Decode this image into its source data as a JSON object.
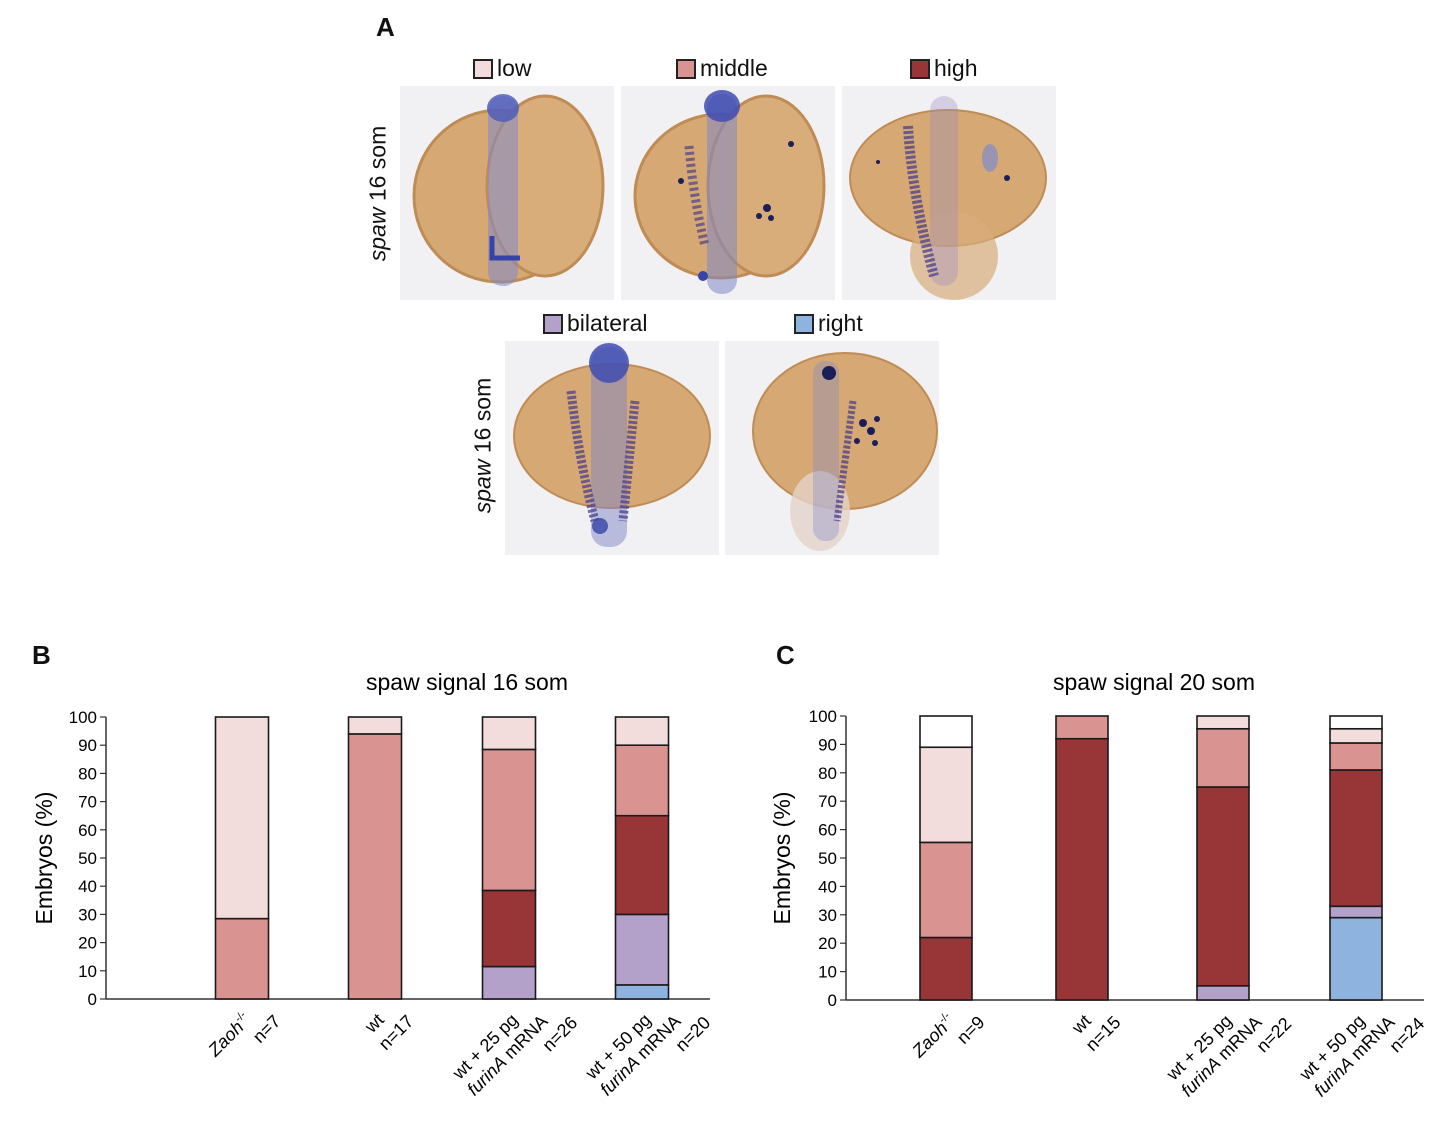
{
  "panelA": {
    "letter": "A",
    "legend": [
      {
        "label": "low",
        "color": "#f3dcdc"
      },
      {
        "label": "middle",
        "color": "#d99492"
      },
      {
        "label": "high",
        "color": "#973537"
      },
      {
        "label": "bilateral",
        "color": "#b3a1c9"
      },
      {
        "label": "right",
        "color": "#8eb3df"
      }
    ],
    "row_label_gene": "spaw",
    "row_label_stage": " 16 som",
    "row2_label_gene": "spaw",
    "row2_label_stage": " 16 som"
  },
  "panelB": {
    "letter": "B"
  },
  "panelC": {
    "letter": "C"
  },
  "chart_data": [
    {
      "type": "bar",
      "stacked": true,
      "title": "spaw signal 16 som",
      "ylabel": "Embryos (%)",
      "ylim": [
        0,
        100
      ],
      "yticks": [
        0,
        10,
        20,
        30,
        40,
        50,
        60,
        70,
        80,
        90,
        100
      ],
      "categories": [
        {
          "lines": [
            "Zaoh-/-",
            "n=7"
          ]
        },
        {
          "lines": [
            "wt",
            "n=17"
          ]
        },
        {
          "lines": [
            "wt + 25 pg",
            "furinA mRNA",
            "n=26"
          ]
        },
        {
          "lines": [
            "wt + 50 pg",
            "furinA mRNA",
            "n=20"
          ]
        }
      ],
      "series": [
        {
          "name": "right",
          "color": "#8eb3df",
          "values": [
            0,
            0,
            0,
            5
          ]
        },
        {
          "name": "bilateral",
          "color": "#b3a1c9",
          "values": [
            0,
            0,
            11.5,
            25
          ]
        },
        {
          "name": "high",
          "color": "#973537",
          "values": [
            0,
            0,
            27,
            35
          ]
        },
        {
          "name": "middle",
          "color": "#d99492",
          "values": [
            28.5,
            94,
            50,
            25
          ]
        },
        {
          "name": "low",
          "color": "#f3dcdc",
          "values": [
            71.5,
            6,
            11.5,
            10
          ]
        },
        {
          "name": "none",
          "color": "#ffffff",
          "values": [
            0,
            0,
            0,
            0
          ]
        }
      ]
    },
    {
      "type": "bar",
      "stacked": true,
      "title": "spaw signal 20 som",
      "ylabel": "Embryos (%)",
      "ylim": [
        0,
        100
      ],
      "yticks": [
        0,
        10,
        20,
        30,
        40,
        50,
        60,
        70,
        80,
        90,
        100
      ],
      "categories": [
        {
          "lines": [
            "Zaoh-/-",
            "n=9"
          ]
        },
        {
          "lines": [
            "wt",
            "n=15"
          ]
        },
        {
          "lines": [
            "wt + 25 pg",
            "furinA mRNA",
            "n=22"
          ]
        },
        {
          "lines": [
            "wt + 50 pg",
            "furinA mRNA",
            "n=24"
          ]
        }
      ],
      "series": [
        {
          "name": "right",
          "color": "#8eb3df",
          "values": [
            0,
            0,
            0,
            29
          ]
        },
        {
          "name": "bilateral",
          "color": "#b3a1c9",
          "values": [
            0,
            0,
            5,
            4
          ]
        },
        {
          "name": "high",
          "color": "#973537",
          "values": [
            22,
            92,
            70,
            48
          ]
        },
        {
          "name": "middle",
          "color": "#d99492",
          "values": [
            33.5,
            8,
            20.5,
            9.5
          ]
        },
        {
          "name": "low",
          "color": "#f3dcdc",
          "values": [
            33.5,
            0,
            4.5,
            5
          ]
        },
        {
          "name": "none",
          "color": "#ffffff",
          "values": [
            11,
            0,
            0,
            4.5
          ]
        }
      ]
    }
  ]
}
